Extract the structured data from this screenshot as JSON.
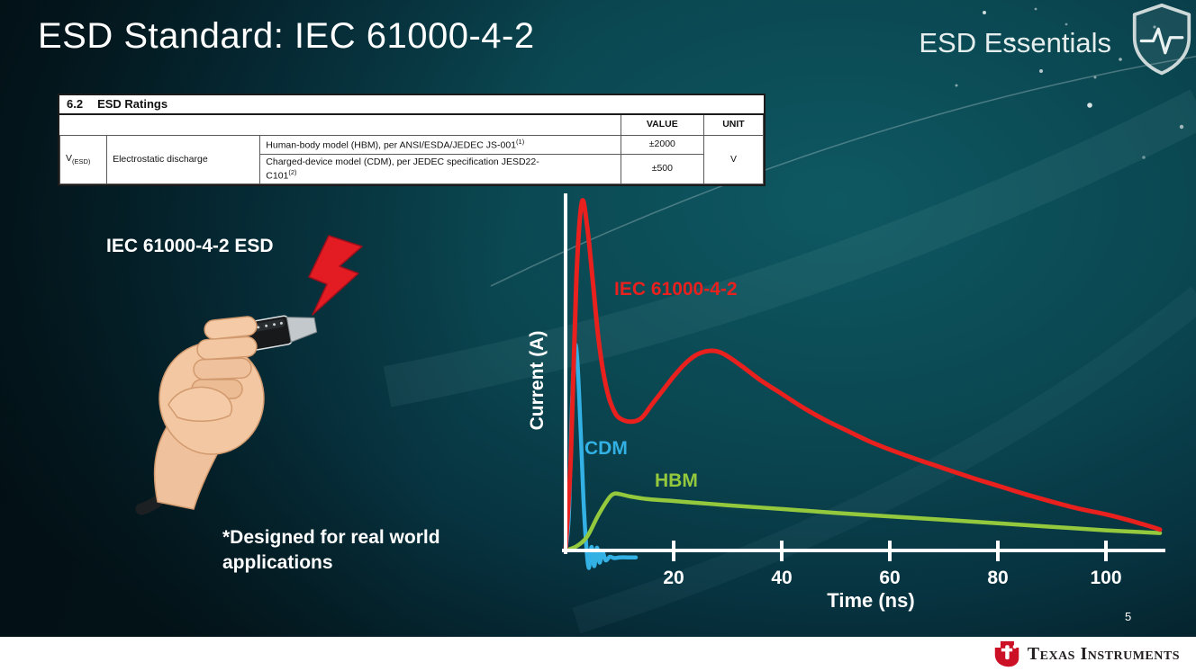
{
  "slide": {
    "title": "ESD Standard: IEC 61000-4-2",
    "program": "ESD Essentials",
    "page_number": "5",
    "brand": "Texas Instruments"
  },
  "ratings_table": {
    "section_no": "6.2",
    "section_name": "ESD Ratings",
    "headers": {
      "value": "VALUE",
      "unit": "UNIT"
    },
    "param": {
      "symbol": "V",
      "symbol_sub": "(ESD)",
      "name": "Electrostatic discharge"
    },
    "rows": [
      {
        "description": "Human-body model (HBM), per ANSI/ESDA/JEDEC JS-001",
        "footnote": "(1)",
        "value": "±2000"
      },
      {
        "description_line1": "Charged-device model (CDM), per JEDEC specification JESD22-",
        "description_line2": "C101",
        "footnote": "(2)",
        "value": "±500"
      }
    ],
    "unit": "V"
  },
  "left_panel": {
    "caption": "IEC 61000-4-2 ESD",
    "note_line1": "*Designed for real world",
    "note_line2": "applications"
  },
  "chart_data": {
    "type": "line",
    "title": "",
    "xlabel": "Time (ns)",
    "ylabel": "Current (A)",
    "x_ticks": [
      20,
      40,
      60,
      80,
      100
    ],
    "xlim": [
      0,
      112
    ],
    "ylim": [
      -0.06,
      1.05
    ],
    "grid": false,
    "legend_position": "inline-labels",
    "y_scale_note": "relative amplitude, no y tick labels shown",
    "series": [
      {
        "name": "IEC 61000-4-2",
        "color": "#e8201e",
        "stroke_width": 5,
        "z_order": 2,
        "points": [
          [
            0,
            0
          ],
          [
            1,
            0.28
          ],
          [
            2,
            0.78
          ],
          [
            3,
            1.0
          ],
          [
            4,
            0.93
          ],
          [
            5,
            0.78
          ],
          [
            6,
            0.62
          ],
          [
            7,
            0.51
          ],
          [
            8,
            0.44
          ],
          [
            9,
            0.4
          ],
          [
            10,
            0.38
          ],
          [
            12,
            0.37
          ],
          [
            14,
            0.38
          ],
          [
            16,
            0.42
          ],
          [
            18,
            0.46
          ],
          [
            20,
            0.5
          ],
          [
            22,
            0.535
          ],
          [
            24,
            0.56
          ],
          [
            26,
            0.572
          ],
          [
            28,
            0.572
          ],
          [
            30,
            0.558
          ],
          [
            33,
            0.525
          ],
          [
            36,
            0.49
          ],
          [
            40,
            0.45
          ],
          [
            44,
            0.41
          ],
          [
            48,
            0.375
          ],
          [
            52,
            0.345
          ],
          [
            56,
            0.315
          ],
          [
            60,
            0.29
          ],
          [
            65,
            0.262
          ],
          [
            70,
            0.236
          ],
          [
            75,
            0.21
          ],
          [
            80,
            0.186
          ],
          [
            85,
            0.162
          ],
          [
            90,
            0.14
          ],
          [
            95,
            0.12
          ],
          [
            100,
            0.104
          ],
          [
            104,
            0.088
          ],
          [
            108,
            0.07
          ],
          [
            110,
            0.06
          ]
        ]
      },
      {
        "name": "CDM",
        "color": "#33b1e4",
        "stroke_width": 4.5,
        "z_order": 0,
        "points": [
          [
            0,
            0
          ],
          [
            0.6,
            0.1
          ],
          [
            1.1,
            0.38
          ],
          [
            1.7,
            0.58
          ],
          [
            2.2,
            0.54
          ],
          [
            2.8,
            0.34
          ],
          [
            3.3,
            0.15
          ],
          [
            3.8,
            0.02
          ],
          [
            4.3,
            -0.05
          ],
          [
            4.8,
            0.01
          ],
          [
            5.3,
            -0.045
          ],
          [
            5.8,
            0.008
          ],
          [
            6.3,
            -0.035
          ],
          [
            6.8,
            -0.002
          ],
          [
            7.4,
            -0.028
          ],
          [
            8.2,
            -0.018
          ],
          [
            9,
            -0.022
          ],
          [
            10,
            -0.02
          ],
          [
            11.5,
            -0.02
          ],
          [
            13,
            -0.02
          ]
        ]
      },
      {
        "name": "HBM",
        "color": "#95c93d",
        "stroke_width": 4.5,
        "z_order": 1,
        "points": [
          [
            0,
            0
          ],
          [
            2,
            0.012
          ],
          [
            4,
            0.04
          ],
          [
            6,
            0.1
          ],
          [
            8,
            0.15
          ],
          [
            9,
            0.163
          ],
          [
            10,
            0.162
          ],
          [
            12,
            0.155
          ],
          [
            15,
            0.148
          ],
          [
            20,
            0.142
          ],
          [
            25,
            0.136
          ],
          [
            30,
            0.13
          ],
          [
            40,
            0.119
          ],
          [
            50,
            0.108
          ],
          [
            60,
            0.098
          ],
          [
            70,
            0.088
          ],
          [
            80,
            0.078
          ],
          [
            90,
            0.068
          ],
          [
            100,
            0.058
          ],
          [
            110,
            0.05
          ]
        ]
      }
    ]
  }
}
